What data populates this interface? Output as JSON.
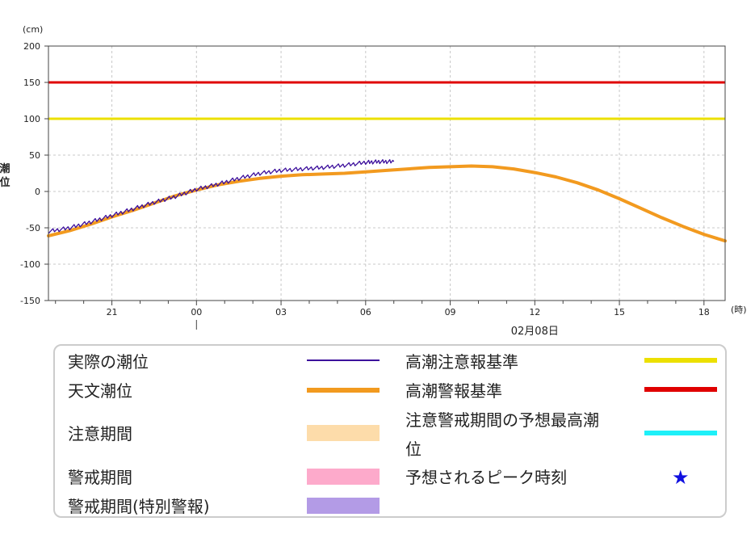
{
  "chart_data": {
    "type": "line",
    "y_unit": "(cm)",
    "y_axis_label_chars": [
      "潮",
      "位"
    ],
    "x_unit": "(時)",
    "date_label": "02月08日",
    "ylim": [
      -150,
      200
    ],
    "y_ticks": [
      200,
      150,
      100,
      50,
      0,
      -50,
      -100,
      -150
    ],
    "x_tick_labels": [
      "21",
      "00",
      "03",
      "06",
      "09",
      "12",
      "15",
      "18"
    ],
    "x_tick_hours": [
      21,
      24,
      27,
      30,
      33,
      36,
      39,
      42
    ],
    "xlim_hours": [
      18.75,
      42.75
    ],
    "grid": true,
    "thresholds": [
      {
        "name": "高潮警報基準",
        "value": 150,
        "color": "#e00000"
      },
      {
        "name": "高潮注意報基準",
        "value": 100,
        "color": "#ece000"
      }
    ],
    "series": [
      {
        "name": "天文潮位",
        "color": "#f29a1f",
        "x_hours": [
          18.75,
          19.5,
          20.25,
          21,
          21.75,
          22.5,
          23.25,
          24,
          24.75,
          25.5,
          26.25,
          27,
          27.75,
          28.5,
          29.25,
          30,
          30.75,
          31.5,
          32.25,
          33,
          33.75,
          34.5,
          35.25,
          36,
          36.75,
          37.5,
          38.25,
          39,
          39.75,
          40.5,
          41.25,
          42,
          42.75
        ],
        "values": [
          -61,
          -54,
          -45,
          -35,
          -26,
          -16,
          -6,
          2,
          9,
          14,
          18,
          21,
          23,
          24,
          25,
          27,
          29,
          31,
          33,
          34,
          35,
          34,
          31,
          26,
          20,
          12,
          2,
          -10,
          -23,
          -36,
          -48,
          -59,
          -68
        ]
      },
      {
        "name": "実際の潮位",
        "color": "#3c0f9c",
        "x_hours": [
          18.75,
          19.5,
          20.25,
          21,
          21.75,
          22.5,
          23.25,
          24,
          24.75,
          25.5,
          26.25,
          27,
          27.75,
          28.5,
          29.25,
          30,
          30.5,
          31
        ],
        "values": [
          -55,
          -50,
          -42,
          -33,
          -24,
          -15,
          -7,
          3,
          10,
          18,
          25,
          29,
          31,
          33,
          36,
          40,
          41,
          41
        ]
      }
    ]
  },
  "legend": {
    "left": [
      {
        "label": "実際の潮位",
        "color": "#3c0f9c",
        "kind": "thin-line"
      },
      {
        "label": "天文潮位",
        "color": "#f29a1f",
        "kind": "line"
      },
      {
        "label": "注意期間",
        "color": "#fddcaa",
        "kind": "block"
      },
      {
        "label": "警戒期間",
        "color": "#fdaacb",
        "kind": "block"
      },
      {
        "label": "警戒期間(特別警報)",
        "color": "#b39be6",
        "kind": "block"
      }
    ],
    "right": [
      {
        "label": "高潮注意報基準",
        "color": "#ece000",
        "kind": "line"
      },
      {
        "label": "高潮警報基準",
        "color": "#e00000",
        "kind": "line"
      },
      {
        "label_line1": "注意警戒期間の予想最高潮",
        "label_line2": "位",
        "color": "#1ef0f8",
        "kind": "line"
      },
      {
        "label": "予想されるピーク時刻",
        "color": "#1010e0",
        "kind": "star",
        "glyph": "★"
      }
    ]
  }
}
